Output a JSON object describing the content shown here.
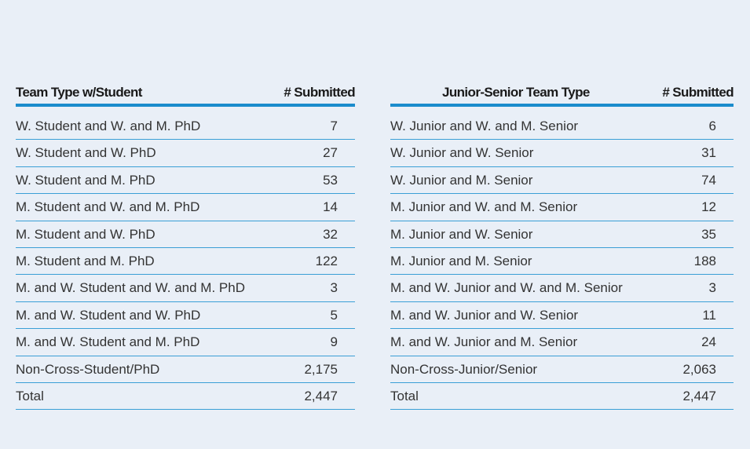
{
  "tables": [
    {
      "headers": [
        "Team Type w/Student",
        "# Submitted"
      ],
      "rows": [
        [
          "W. Student and W. and M. PhD",
          "7"
        ],
        [
          "W. Student and W. PhD",
          "27"
        ],
        [
          "W. Student and M. PhD",
          "53"
        ],
        [
          "M. Student and W. and M. PhD",
          "14"
        ],
        [
          "M. Student and W. PhD",
          "32"
        ],
        [
          "M. Student and M. PhD",
          "122"
        ],
        [
          "M. and W. Student and W. and M. PhD",
          "3"
        ],
        [
          "M. and W. Student and W. PhD",
          "5"
        ],
        [
          "M. and W. Student and M. PhD",
          "9"
        ],
        [
          "Non-Cross-Student/PhD",
          "2,175"
        ],
        [
          "Total",
          "2,447"
        ]
      ]
    },
    {
      "headers": [
        "Junior-Senior Team Type",
        "# Submitted"
      ],
      "rows": [
        [
          "W. Junior and W. and M. Senior",
          "6"
        ],
        [
          "W. Junior and W. Senior",
          "31"
        ],
        [
          "W. Junior and M. Senior",
          "74"
        ],
        [
          "M. Junior and W. and M. Senior",
          "12"
        ],
        [
          "M. Junior and W. Senior",
          "35"
        ],
        [
          "M. Junior and M. Senior",
          "188"
        ],
        [
          "M. and W. Junior and W. and M. Senior",
          "3"
        ],
        [
          "M. and W. Junior and W. Senior",
          "11"
        ],
        [
          "M. and W. Junior and M. Senior",
          "24"
        ],
        [
          "Non-Cross-Junior/Senior",
          "2,063"
        ],
        [
          "Total",
          "2,447"
        ]
      ]
    }
  ]
}
